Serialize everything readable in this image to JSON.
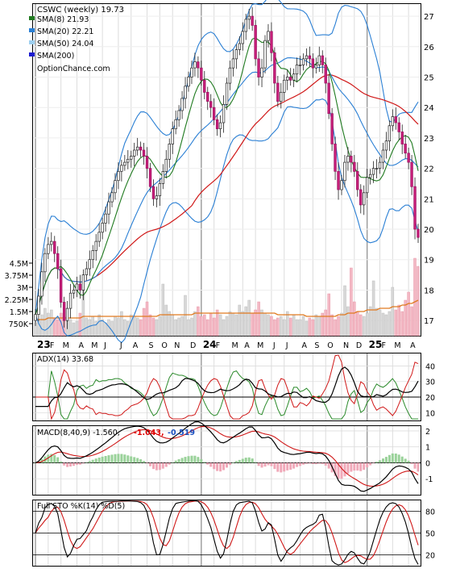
{
  "chart_data": [
    {
      "type": "line",
      "panel": "price",
      "title": "CSWC (weekly) 19.73",
      "source": "OptionChance.com",
      "y_ticks": [
        17,
        18,
        19,
        20,
        21,
        22,
        23,
        24,
        25,
        26,
        27
      ],
      "ylim": [
        16.5,
        27.4
      ],
      "legend": [
        {
          "label": "SMA(8) 21.93",
          "color": "#1f7a1f"
        },
        {
          "label": "SMA(20) 22.21",
          "color": "#2a7fd4"
        },
        {
          "label": "SMA(50) 24.04",
          "color": "#9fd0f0"
        },
        {
          "label": "SMA(200)",
          "color": "#1a1ad0"
        }
      ],
      "x_labels": [
        {
          "text": "23",
          "bold": true,
          "t": 0
        },
        {
          "text": "F",
          "t": 4
        },
        {
          "text": "M",
          "t": 8
        },
        {
          "text": "A",
          "t": 13
        },
        {
          "text": "M",
          "t": 17
        },
        {
          "text": "J",
          "t": 21
        },
        {
          "text": "J",
          "t": 26
        },
        {
          "text": "A",
          "t": 30
        },
        {
          "text": "S",
          "t": 35
        },
        {
          "text": "O",
          "t": 39
        },
        {
          "text": "N",
          "t": 43
        },
        {
          "text": "D",
          "t": 48
        },
        {
          "text": "24",
          "bold": true,
          "t": 52
        },
        {
          "text": "F",
          "t": 56
        },
        {
          "text": "M",
          "t": 61
        },
        {
          "text": "A",
          "t": 65
        },
        {
          "text": "M",
          "t": 69
        },
        {
          "text": "J",
          "t": 74
        },
        {
          "text": "J",
          "t": 78
        },
        {
          "text": "A",
          "t": 83
        },
        {
          "text": "S",
          "t": 87
        },
        {
          "text": "O",
          "t": 91
        },
        {
          "text": "N",
          "t": 96
        },
        {
          "text": "D",
          "t": 100
        },
        {
          "text": "25",
          "bold": true,
          "t": 104
        },
        {
          "text": "F",
          "t": 108
        },
        {
          "text": "M",
          "t": 112
        },
        {
          "text": "A",
          "t": 117
        }
      ],
      "close": [
        17.2,
        17.8,
        18.6,
        19.2,
        19.5,
        19.6,
        19.2,
        18.7,
        17.6,
        17.0,
        17.4,
        17.9,
        18.0,
        18.2,
        18.0,
        18.5,
        18.7,
        19.0,
        19.3,
        19.6,
        19.9,
        20.2,
        20.5,
        20.9,
        21.2,
        21.6,
        21.9,
        22.1,
        22.2,
        22.3,
        22.4,
        22.6,
        22.7,
        22.6,
        22.4,
        22.0,
        21.4,
        21.0,
        21.1,
        21.5,
        21.9,
        22.3,
        22.8,
        23.3,
        23.6,
        23.9,
        24.3,
        24.7,
        25.0,
        25.3,
        25.5,
        25.3,
        24.9,
        24.5,
        24.2,
        24.0,
        23.6,
        23.3,
        23.5,
        24.1,
        24.8,
        25.3,
        25.6,
        25.9,
        26.1,
        26.5,
        26.9,
        27.0,
        26.7,
        25.6,
        25.0,
        25.3,
        26.2,
        26.5,
        25.8,
        24.8,
        24.2,
        24.5,
        24.9,
        25.0,
        24.9,
        25.1,
        25.4,
        25.4,
        25.6,
        25.7,
        25.6,
        25.3,
        25.4,
        25.7,
        25.4,
        24.8,
        23.8,
        22.8,
        21.9,
        21.3,
        21.6,
        22.2,
        22.4,
        22.2,
        21.9,
        21.3,
        20.8,
        21.2,
        21.7,
        21.8,
        22.0,
        22.0,
        22.2,
        22.6,
        22.9,
        23.4,
        23.7,
        23.5,
        23.2,
        22.8,
        22.5,
        22.2,
        21.4,
        20.0,
        19.73
      ],
      "volume_ticks": [
        "4.5M",
        "3.75M",
        "3M",
        "2.25M",
        "1.5M",
        "750K"
      ],
      "volume_values": [
        4.5,
        3.75,
        3,
        2.25,
        1.5,
        0.75
      ],
      "volume_max": 5.2,
      "volume_m": [
        0.8,
        0.9,
        1.3,
        1.7,
        1.4,
        1.6,
        1.1,
        1.0,
        1.4,
        1.2,
        0.9,
        1.0,
        0.8,
        0.9,
        1.4,
        2.8,
        1.1,
        1.0,
        1.2,
        0.9,
        1.3,
        1.0,
        0.8,
        1.0,
        0.9,
        1.2,
        1.1,
        1.5,
        1.0,
        0.9,
        1.3,
        1.2,
        1.1,
        1.0,
        1.7,
        2.1,
        1.3,
        1.1,
        1.0,
        1.2,
        3.2,
        1.9,
        1.5,
        1.3,
        1.0,
        1.1,
        1.2,
        2.5,
        1.0,
        1.1,
        1.5,
        1.8,
        1.2,
        1.3,
        1.0,
        1.4,
        1.1,
        1.6,
        1.3,
        1.0,
        1.2,
        1.5,
        1.4,
        1.3,
        1.9,
        1.5,
        1.8,
        2.2,
        1.4,
        1.6,
        2.1,
        1.6,
        1.4,
        1.3,
        1.2,
        1.0,
        1.1,
        1.2,
        1.0,
        1.5,
        1.1,
        1.3,
        1.0,
        1.0,
        1.2,
        0.9,
        1.1,
        1.0,
        1.3,
        1.2,
        1.4,
        1.6,
        2.6,
        1.3,
        1.0,
        1.2,
        1.4,
        3.1,
        1.8,
        4.2,
        2.1,
        1.5,
        1.3,
        1.2,
        1.4,
        1.8,
        3.4,
        1.7,
        1.6,
        1.4,
        1.3,
        1.5,
        3.0,
        1.6,
        1.9,
        1.5,
        2.2,
        2.7,
        1.8,
        4.8,
        4.3
      ],
      "volume_avg_m": [
        1.0,
        1.0,
        1.0,
        1.0,
        1.1,
        1.1,
        1.1,
        1.1,
        1.1,
        1.1,
        1.1,
        1.1,
        1.1,
        1.1,
        1.1,
        1.2,
        1.2,
        1.2,
        1.2,
        1.2,
        1.2,
        1.2,
        1.2,
        1.2,
        1.2,
        1.2,
        1.2,
        1.2,
        1.2,
        1.2,
        1.2,
        1.2,
        1.2,
        1.2,
        1.2,
        1.2,
        1.2,
        1.2,
        1.2,
        1.3,
        1.3,
        1.3,
        1.3,
        1.3,
        1.3,
        1.3,
        1.3,
        1.3,
        1.3,
        1.3,
        1.4,
        1.4,
        1.4,
        1.4,
        1.4,
        1.4,
        1.4,
        1.4,
        1.4,
        1.4,
        1.4,
        1.4,
        1.4,
        1.4,
        1.4,
        1.4,
        1.4,
        1.4,
        1.4,
        1.4,
        1.4,
        1.4,
        1.4,
        1.4,
        1.4,
        1.4,
        1.3,
        1.3,
        1.3,
        1.3,
        1.3,
        1.3,
        1.3,
        1.3,
        1.3,
        1.2,
        1.2,
        1.2,
        1.2,
        1.2,
        1.2,
        1.2,
        1.2,
        1.2,
        1.2,
        1.3,
        1.3,
        1.3,
        1.4,
        1.4,
        1.4,
        1.5,
        1.5,
        1.5,
        1.6,
        1.6,
        1.6,
        1.6,
        1.7,
        1.7,
        1.7,
        1.7,
        1.8,
        1.8,
        1.8,
        1.9,
        1.9,
        2.0,
        2.0,
        2.1,
        2.2
      ]
    },
    {
      "type": "line",
      "panel": "adx",
      "label": "ADX(14) 33.68",
      "y_ticks": [
        10,
        20,
        30,
        40
      ],
      "ylim": [
        5,
        48
      ]
    },
    {
      "type": "line",
      "panel": "macd",
      "label": "MACD(8,40,9) -1.560,",
      "signal_label": "-1.043,",
      "hist_label": "-0.519",
      "y_ticks": [
        -1,
        0,
        1,
        2
      ],
      "ylim": [
        -2.0,
        2.3
      ]
    },
    {
      "type": "line",
      "panel": "stochastic",
      "label": "Full STO %K(14) %D(5)",
      "y_ticks": [
        20,
        50,
        80
      ],
      "ylim": [
        5,
        95
      ]
    }
  ]
}
